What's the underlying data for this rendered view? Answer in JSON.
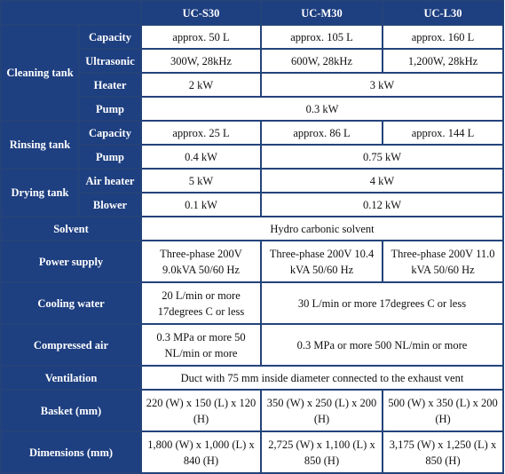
{
  "columns": [
    "UC-S30",
    "UC-M30",
    "UC-L30"
  ],
  "groups": {
    "cleaning_tank": "Cleaning tank",
    "rinsing_tank": "Rinsing tank",
    "drying_tank": "Drying tank"
  },
  "rows": {
    "cleaning_capacity": {
      "label": "Capacity",
      "s30": "approx. 50 L",
      "m30": "approx. 105 L",
      "l30": "approx. 160 L"
    },
    "cleaning_ultrasonic": {
      "label": "Ultrasonic",
      "s30": "300W, 28kHz",
      "m30": "600W, 28kHz",
      "l30": "1,200W, 28kHz"
    },
    "cleaning_heater": {
      "label": "Heater",
      "s30": "2 kW",
      "m30_l30": "3 kW"
    },
    "cleaning_pump": {
      "label": "Pump",
      "all": "0.3 kW"
    },
    "rinsing_capacity": {
      "label": "Capacity",
      "s30": "approx. 25 L",
      "m30": "approx. 86 L",
      "l30": "approx. 144 L"
    },
    "rinsing_pump": {
      "label": "Pump",
      "s30": "0.4 kW",
      "m30_l30": "0.75 kW"
    },
    "drying_air_heater": {
      "label": "Air heater",
      "s30": "5 kW",
      "m30_l30": "4 kW"
    },
    "drying_blower": {
      "label": "Blower",
      "s30": "0.1 kW",
      "m30_l30": "0.12 kW"
    },
    "solvent": {
      "label": "Solvent",
      "all": "Hydro carbonic solvent"
    },
    "power_supply": {
      "label": "Power supply",
      "s30": "Three-phase 200V 9.0kVA 50/60 Hz",
      "m30": "Three-phase 200V 10.4 kVA 50/60 Hz",
      "l30": "Three-phase 200V 11.0 kVA 50/60 Hz"
    },
    "cooling_water": {
      "label": "Cooling water",
      "s30": "20 L/min or more 17degrees C or less",
      "m30_l30": "30 L/min or more 17degrees C or less"
    },
    "compressed_air": {
      "label": "Compressed air",
      "s30": "0.3 MPa or more 50 NL/min or more",
      "m30_l30": "0.3 MPa or more 500 NL/min or more"
    },
    "ventilation": {
      "label": "Ventilation",
      "all": "Duct with 75 mm inside diameter connected to the exhaust vent"
    },
    "basket": {
      "label": "Basket (mm)",
      "s30": "220 (W) x 150 (L) x 120 (H)",
      "m30": "350 (W) x 250 (L) x 200 (H)",
      "l30": "500 (W) x 350 (L) x 200 (H)"
    },
    "dimensions": {
      "label": "Dimensions (mm)",
      "s30": "1,800 (W) x 1,000 (L) x 840 (H)",
      "m30": "2,725 (W) x 1,100 (L) x 850 (H)",
      "l30": "3,175 (W) x 1,250 (L) x 850 (H)"
    }
  },
  "colors": {
    "header_bg": "#1e3f80",
    "grid": "#24437a",
    "cell_bg": "#ffffff",
    "header_text": "#ffffff"
  }
}
